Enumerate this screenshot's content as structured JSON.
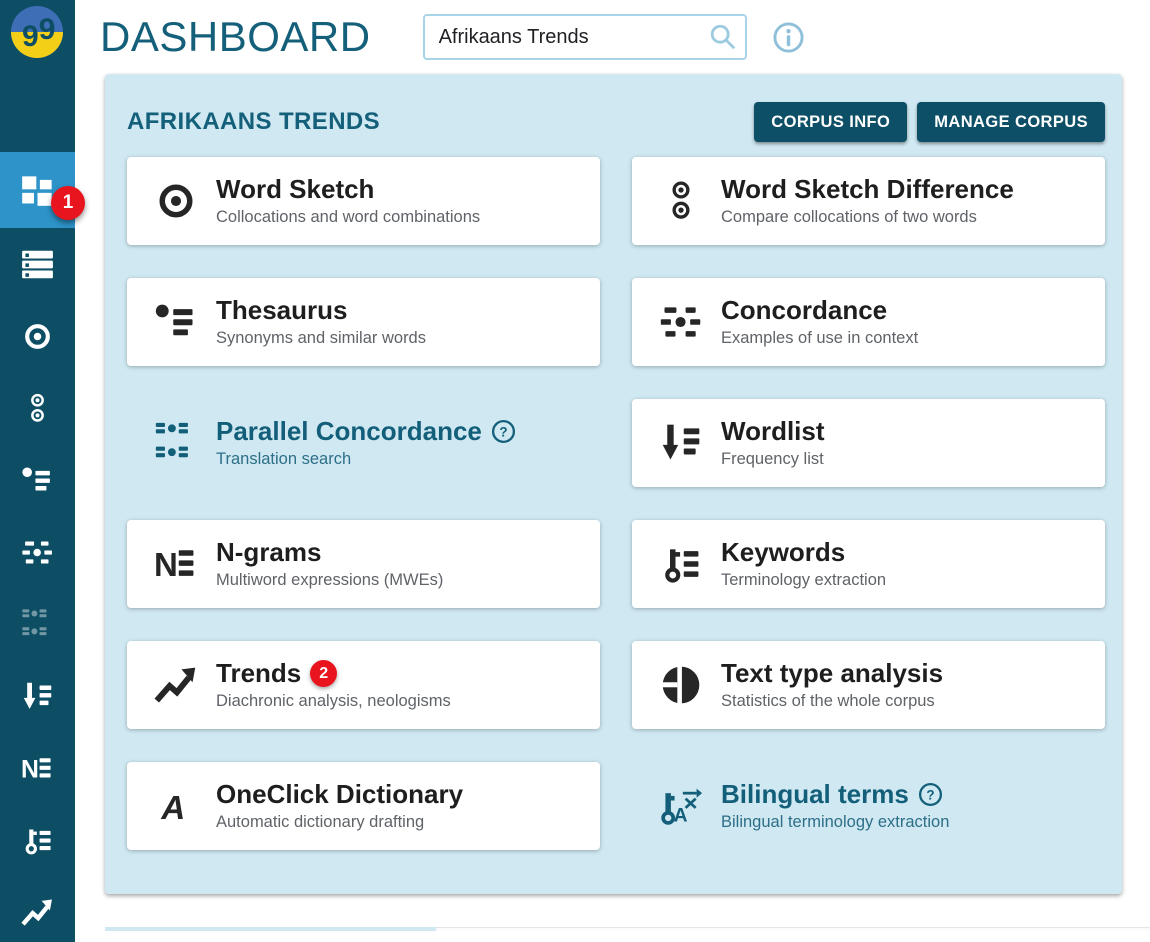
{
  "sidebar": {
    "logo_icon": "sketch-engine-logo",
    "items": [
      {
        "icon": "dashboard-grid-icon",
        "active": true,
        "badge": "1"
      },
      {
        "icon": "corpora-menu-icon"
      },
      {
        "icon": "word-sketch-icon"
      },
      {
        "icon": "word-sketch-difference-icon"
      },
      {
        "icon": "thesaurus-icon"
      },
      {
        "icon": "concordance-icon"
      },
      {
        "icon": "parallel-concordance-icon",
        "dimmed": true
      },
      {
        "icon": "wordlist-icon"
      },
      {
        "icon": "ngrams-icon"
      },
      {
        "icon": "keywords-icon"
      },
      {
        "icon": "trends-icon"
      }
    ]
  },
  "header": {
    "title": "DASHBOARD",
    "search_value": "Afrikaans Trends",
    "search_icon": "search-icon",
    "info_icon": "info-icon"
  },
  "panel": {
    "title": "AFRIKAANS TRENDS",
    "buttons": [
      {
        "label": "CORPUS INFO"
      },
      {
        "label": "MANAGE CORPUS"
      }
    ],
    "cards": [
      {
        "title": "Word Sketch",
        "subtitle": "Collocations and word combinations",
        "icon": "word-sketch-icon",
        "style": "card"
      },
      {
        "title": "Word Sketch Difference",
        "subtitle": "Compare collocations of two words",
        "icon": "word-sketch-difference-icon",
        "style": "card"
      },
      {
        "title": "Thesaurus",
        "subtitle": "Synonyms and similar words",
        "icon": "thesaurus-icon",
        "style": "card"
      },
      {
        "title": "Concordance",
        "subtitle": "Examples of use in context",
        "icon": "concordance-icon",
        "style": "card"
      },
      {
        "title": "Parallel Concordance",
        "subtitle": "Translation search",
        "icon": "parallel-concordance-icon",
        "style": "plain",
        "help": true
      },
      {
        "title": "Wordlist",
        "subtitle": "Frequency list",
        "icon": "wordlist-icon",
        "style": "card"
      },
      {
        "title": "N-grams",
        "subtitle": "Multiword expressions (MWEs)",
        "icon": "ngrams-icon",
        "style": "card"
      },
      {
        "title": "Keywords",
        "subtitle": "Terminology extraction",
        "icon": "keywords-icon",
        "style": "card"
      },
      {
        "title": "Trends",
        "subtitle": "Diachronic analysis, neologisms",
        "icon": "trends-icon",
        "style": "card",
        "badge": "2"
      },
      {
        "title": "Text type analysis",
        "subtitle": "Statistics of the whole corpus",
        "icon": "text-type-icon",
        "style": "card"
      },
      {
        "title": "OneClick Dictionary",
        "subtitle": "Automatic dictionary drafting",
        "icon": "oneclick-icon",
        "style": "card"
      },
      {
        "title": "Bilingual terms",
        "subtitle": "Bilingual terminology extraction",
        "icon": "bilingual-terms-icon",
        "style": "plain",
        "help": true
      }
    ]
  },
  "colors": {
    "sidebar_bg": "#0d4e64",
    "sidebar_active": "#2e93c9",
    "badge_red": "#e9151e",
    "panel_bg": "#cfe8f2",
    "teal_text": "#14607a",
    "button_bg": "#0d4f66",
    "logo_blue": "#3e6eb5",
    "logo_yellow": "#f3cf17"
  }
}
